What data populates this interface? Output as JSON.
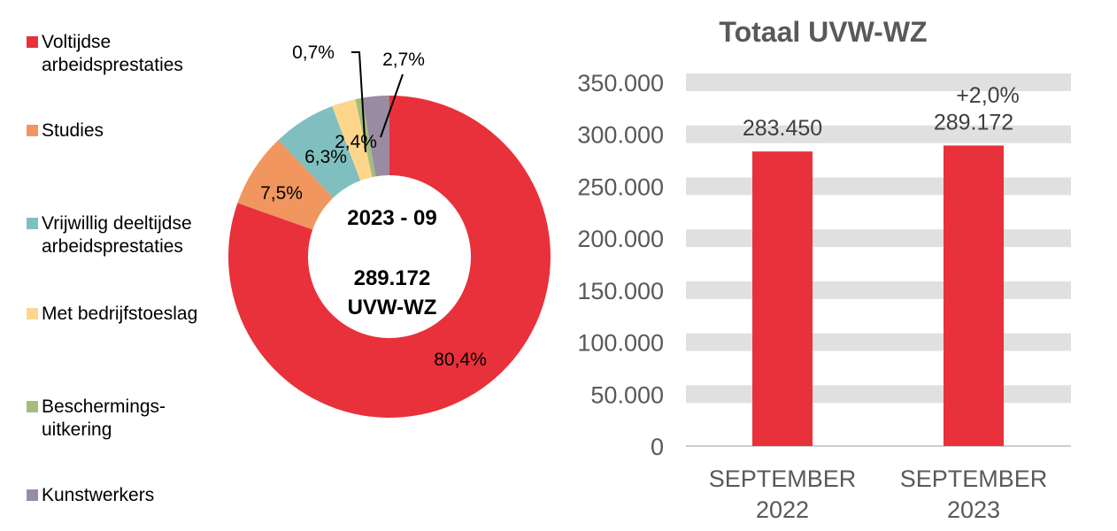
{
  "chart_data": [
    {
      "type": "pie",
      "donut": true,
      "center_text": {
        "period": "2023 - 09",
        "total": "289.172",
        "unit": "UVW-WZ"
      },
      "slices": [
        {
          "label": "Voltijdse arbeidsprestaties",
          "value": 80.4,
          "display": "80,4%",
          "color": "#E8313A"
        },
        {
          "label": "Studies",
          "value": 7.5,
          "display": "7,5%",
          "color": "#F0965E"
        },
        {
          "label": "Vrijwillig deeltijdse arbeidsprestaties",
          "value": 6.3,
          "display": "6,3%",
          "color": "#80BFBF"
        },
        {
          "label": "Met bedrijfstoeslag",
          "value": 2.4,
          "display": "2,4%",
          "color": "#FDD68C"
        },
        {
          "label": "Beschermings-uitkering",
          "value": 0.7,
          "display": "0,7%",
          "color": "#A3BE7A"
        },
        {
          "label": "Kunstwerkers",
          "value": 2.7,
          "display": "2,7%",
          "color": "#9A8BA2"
        }
      ],
      "legend": [
        "Voltijdse arbeidsprestaties",
        "Studies",
        "Vrijwillig deeltijdse arbeidsprestaties",
        "Met bedrijfstoeslag",
        "Beschermings-uitkering",
        "Kunstwerkers"
      ],
      "legend_placement": "left"
    },
    {
      "type": "bar",
      "title": "Totaal UVW-WZ",
      "categories": [
        "SEPTEMBER 2022",
        "SEPTEMBER 2023"
      ],
      "values": [
        283450,
        289172
      ],
      "data_labels": [
        "283.450",
        "289.172"
      ],
      "annotation": "+2,0%",
      "ylim": [
        0,
        350000
      ],
      "yticks": [
        "0",
        "50.000",
        "100.000",
        "150.000",
        "200.000",
        "250.000",
        "300.000",
        "350.000"
      ],
      "color": "#E8313A",
      "grid": true
    }
  ]
}
